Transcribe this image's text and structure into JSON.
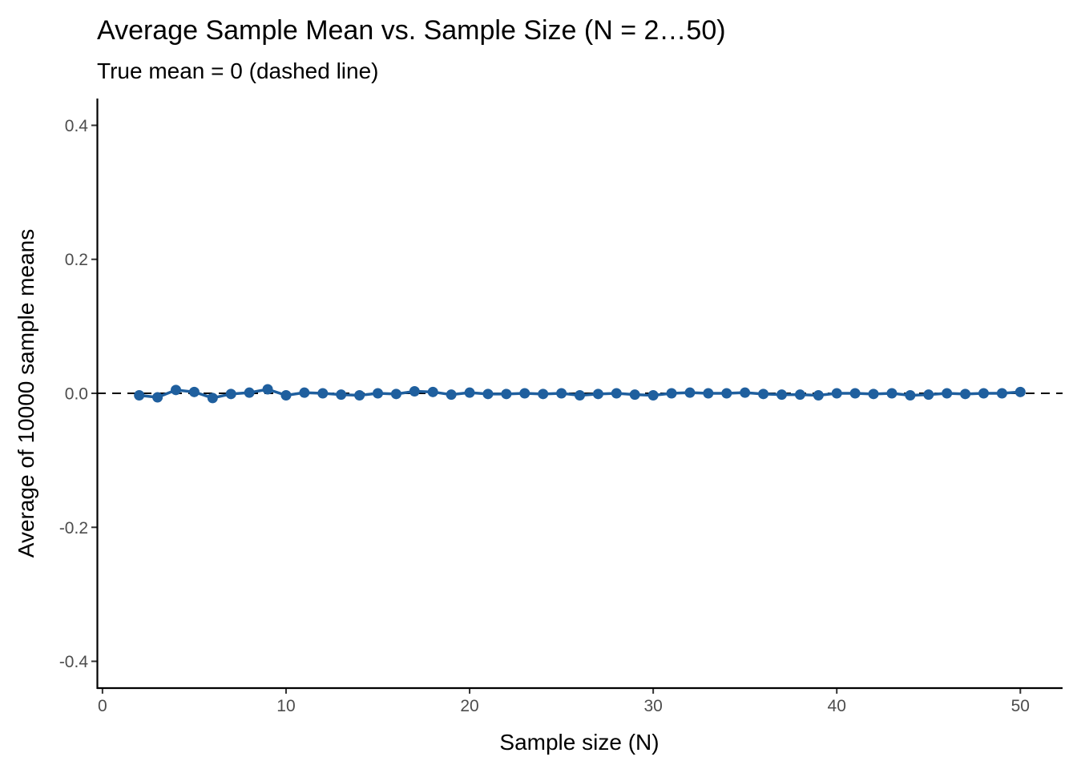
{
  "chart_data": {
    "type": "line",
    "title": "Average Sample Mean vs. Sample Size (N = 2…50)",
    "subtitle": "True mean = 0 (dashed line)",
    "xlabel": "Sample size (N)",
    "ylabel": "Average of 10000 sample means",
    "xlim": [
      -0.3,
      52.3
    ],
    "ylim": [
      -0.44,
      0.44
    ],
    "x_ticks": [
      0,
      10,
      20,
      30,
      40,
      50
    ],
    "x_tick_labels": [
      "0",
      "10",
      "20",
      "30",
      "40",
      "50"
    ],
    "y_ticks": [
      -0.4,
      -0.2,
      0.0,
      0.2,
      0.4
    ],
    "y_tick_labels": [
      "-0.4",
      "-0.2",
      "0.0",
      "0.2",
      "0.4"
    ],
    "grid": false,
    "reference_line": {
      "y": 0,
      "style": "dashed",
      "color": "#000000"
    },
    "series": [
      {
        "color": "#1f5f9e",
        "x": [
          2,
          3,
          4,
          5,
          6,
          7,
          8,
          9,
          10,
          11,
          12,
          13,
          14,
          15,
          16,
          17,
          18,
          19,
          20,
          21,
          22,
          23,
          24,
          25,
          26,
          27,
          28,
          29,
          30,
          31,
          32,
          33,
          34,
          35,
          36,
          37,
          38,
          39,
          40,
          41,
          42,
          43,
          44,
          45,
          46,
          47,
          48,
          49,
          50
        ],
        "values": [
          -0.003,
          -0.006,
          0.005,
          0.002,
          -0.007,
          -0.001,
          0.001,
          0.006,
          -0.003,
          0.001,
          0.0,
          -0.002,
          -0.003,
          0.0,
          -0.001,
          0.003,
          0.002,
          -0.002,
          0.001,
          -0.001,
          -0.001,
          0.0,
          -0.001,
          0.0,
          -0.003,
          -0.001,
          0.0,
          -0.002,
          -0.003,
          0.0,
          0.001,
          0.0,
          0.0,
          0.001,
          -0.001,
          -0.002,
          -0.002,
          -0.003,
          0.0,
          0.0,
          -0.001,
          0.0,
          -0.003,
          -0.002,
          0.0,
          -0.001,
          0.0,
          0.0,
          0.002
        ]
      }
    ]
  }
}
